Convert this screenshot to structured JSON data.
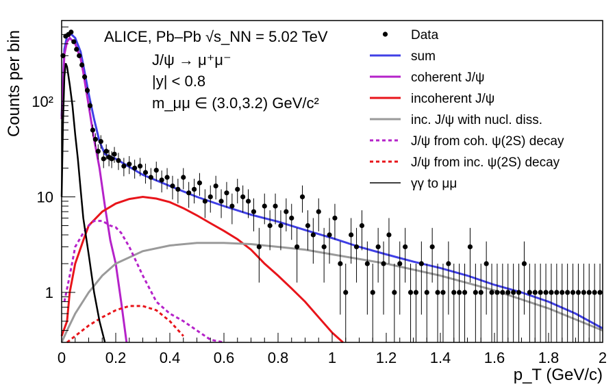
{
  "chart_data": {
    "type": "line",
    "xlabel": "p_T (GeV/c)",
    "ylabel": "Counts per bin",
    "xlim": [
      0,
      2
    ],
    "ylim": [
      0.3,
      700
    ],
    "yscale": "log",
    "grid": false,
    "legend_position": "top-right",
    "x_tick_labels": [
      "0",
      "0.2",
      "0.4",
      "0.6",
      "0.8",
      "1",
      "1.2",
      "1.4",
      "1.6",
      "1.8",
      "2"
    ],
    "y_tick_labels": [
      "1",
      "10",
      "10²"
    ],
    "annotations": [
      "ALICE, Pb–Pb √s_NN = 5.02 TeV",
      "J/ψ → μ⁺μ⁻",
      "|y| < 0.8",
      "m_μμ ∈ (3.0,3.2) GeV/c²"
    ],
    "legend": [
      {
        "label": "Data",
        "kind": "marker",
        "color": "#000000"
      },
      {
        "label": "sum",
        "kind": "line",
        "color": "#3f3fe6"
      },
      {
        "label": "coherent J/ψ",
        "kind": "line",
        "color": "#b522c9"
      },
      {
        "label": "incoherent J/ψ",
        "kind": "line",
        "color": "#e8141a"
      },
      {
        "label": "inc. J/ψ with nucl. diss.",
        "kind": "line",
        "color": "#9a9a9a"
      },
      {
        "label": "J/ψ from coh. ψ(2S) decay",
        "kind": "dashed",
        "color": "#b522c9"
      },
      {
        "label": "J/ψ from inc. ψ(2S) decay",
        "kind": "dashed",
        "color": "#e8141a"
      },
      {
        "label": "γγ to μμ",
        "kind": "thin",
        "color": "#000000"
      }
    ],
    "series": [
      {
        "name": "sum",
        "color": "#3f3fe6",
        "style": "solid",
        "x": [
          0,
          0.01,
          0.02,
          0.03,
          0.05,
          0.07,
          0.08,
          0.1,
          0.12,
          0.14,
          0.16,
          0.2,
          0.3,
          0.4,
          0.5,
          0.6,
          0.7,
          0.8,
          0.9,
          1.0,
          1.1,
          1.2,
          1.3,
          1.4,
          1.5,
          1.6,
          1.7,
          1.8,
          1.9,
          2.0
        ],
        "y": [
          70,
          350,
          480,
          520,
          460,
          330,
          240,
          120,
          65,
          38,
          28,
          25,
          17,
          13,
          10,
          8,
          6.5,
          5.5,
          4.5,
          3.7,
          3.0,
          2.5,
          2.1,
          1.8,
          1.5,
          1.2,
          1.0,
          0.8,
          0.6,
          0.42
        ]
      },
      {
        "name": "coherent J/ψ",
        "color": "#b522c9",
        "style": "solid",
        "x": [
          0,
          0.01,
          0.02,
          0.03,
          0.05,
          0.07,
          0.08,
          0.1,
          0.12,
          0.14,
          0.16,
          0.18,
          0.2,
          0.22,
          0.24
        ],
        "y": [
          65,
          310,
          420,
          460,
          400,
          280,
          200,
          90,
          40,
          20,
          8,
          3.5,
          2,
          0.8,
          0.3
        ]
      },
      {
        "name": "incoherent J/ψ",
        "color": "#e8141a",
        "style": "solid",
        "x": [
          0,
          0.02,
          0.03,
          0.05,
          0.08,
          0.1,
          0.15,
          0.2,
          0.25,
          0.3,
          0.35,
          0.4,
          0.45,
          0.5,
          0.55,
          0.6,
          0.65,
          0.7,
          0.75,
          0.8,
          0.85,
          0.9,
          0.95,
          1.0,
          1.04
        ],
        "y": [
          0.35,
          0.5,
          1.0,
          2.0,
          3.5,
          5.0,
          7.0,
          8.5,
          9.5,
          10,
          9.6,
          8.8,
          7.6,
          6.4,
          5.3,
          4.4,
          3.6,
          2.8,
          2.0,
          1.5,
          1.1,
          0.8,
          0.55,
          0.38,
          0.3
        ]
      },
      {
        "name": "inc. J/ψ with nucl. diss.",
        "color": "#9a9a9a",
        "style": "solid",
        "x": [
          0,
          0.02,
          0.05,
          0.1,
          0.15,
          0.2,
          0.3,
          0.4,
          0.5,
          0.6,
          0.7,
          0.8,
          0.9,
          1.0,
          1.2,
          1.4,
          1.6,
          1.8,
          2.0
        ],
        "y": [
          0.3,
          0.4,
          0.6,
          1.0,
          1.5,
          2.0,
          2.7,
          3.1,
          3.3,
          3.3,
          3.2,
          3.0,
          2.8,
          2.5,
          2.0,
          1.5,
          1.05,
          0.68,
          0.4
        ]
      },
      {
        "name": "J/ψ from coh. ψ(2S) decay",
        "color": "#b522c9",
        "style": "dashed",
        "x": [
          0.01,
          0.03,
          0.05,
          0.08,
          0.1,
          0.12,
          0.15,
          0.18,
          0.2,
          0.22,
          0.25,
          0.3,
          0.35,
          0.4,
          0.45,
          0.5,
          0.55,
          0.6
        ],
        "y": [
          0.8,
          1.5,
          3.0,
          4.2,
          5.0,
          5.6,
          5.6,
          5.0,
          4.8,
          4.2,
          3.0,
          1.5,
          0.8,
          0.6,
          0.5,
          0.4,
          0.32,
          0.3
        ]
      },
      {
        "name": "J/ψ from inc. ψ(2S) decay",
        "color": "#e8141a",
        "style": "dashed",
        "x": [
          0.02,
          0.05,
          0.1,
          0.15,
          0.2,
          0.25,
          0.3,
          0.35,
          0.4,
          0.45
        ],
        "y": [
          0.3,
          0.35,
          0.45,
          0.55,
          0.65,
          0.72,
          0.72,
          0.65,
          0.5,
          0.35
        ]
      },
      {
        "name": "γγ to μμ",
        "color": "#000000",
        "style": "solid",
        "x": [
          0,
          0.005,
          0.01,
          0.015,
          0.02,
          0.03,
          0.04,
          0.05,
          0.06,
          0.07,
          0.08,
          0.1,
          0.12,
          0.14,
          0.16
        ],
        "y": [
          10,
          60,
          180,
          250,
          230,
          150,
          90,
          45,
          25,
          12,
          6,
          2.5,
          1.0,
          0.5,
          0.3
        ]
      }
    ],
    "data_points": {
      "name": "Data",
      "x": [
        0.005,
        0.015,
        0.025,
        0.035,
        0.045,
        0.055,
        0.065,
        0.075,
        0.085,
        0.095,
        0.105,
        0.115,
        0.125,
        0.135,
        0.145,
        0.155,
        0.165,
        0.175,
        0.185,
        0.195,
        0.21,
        0.23,
        0.25,
        0.27,
        0.29,
        0.31,
        0.33,
        0.35,
        0.37,
        0.39,
        0.41,
        0.43,
        0.45,
        0.47,
        0.49,
        0.51,
        0.53,
        0.55,
        0.57,
        0.59,
        0.61,
        0.63,
        0.65,
        0.67,
        0.69,
        0.71,
        0.73,
        0.75,
        0.77,
        0.79,
        0.81,
        0.83,
        0.85,
        0.87,
        0.89,
        0.91,
        0.93,
        0.95,
        0.97,
        0.99,
        1.01,
        1.03,
        1.05,
        1.07,
        1.09,
        1.11,
        1.13,
        1.15,
        1.17,
        1.19,
        1.21,
        1.23,
        1.25,
        1.27,
        1.29,
        1.31,
        1.33,
        1.35,
        1.37,
        1.39,
        1.41,
        1.43,
        1.45,
        1.47,
        1.49,
        1.51,
        1.53,
        1.55,
        1.57,
        1.59,
        1.61,
        1.63,
        1.65,
        1.67,
        1.69,
        1.71,
        1.73,
        1.75,
        1.77,
        1.79,
        1.81,
        1.83,
        1.85,
        1.87,
        1.89,
        1.91,
        1.93,
        1.95,
        1.97,
        1.99
      ],
      "y": [
        300,
        480,
        500,
        530,
        420,
        350,
        300,
        240,
        180,
        130,
        90,
        50,
        40,
        30,
        38,
        25,
        30,
        26,
        25,
        28,
        24,
        21,
        22,
        20,
        21,
        18,
        16,
        19,
        15,
        16,
        13,
        12,
        16,
        11,
        12,
        14,
        9,
        10,
        13,
        9,
        11,
        8,
        12,
        10,
        9,
        7,
        3,
        8,
        5,
        8,
        5,
        7,
        6,
        3,
        10,
        5,
        4,
        7,
        3,
        4,
        6,
        2,
        1,
        4,
        3,
        5,
        2,
        1,
        3,
        2,
        4,
        1,
        2,
        3,
        1,
        1,
        2,
        1,
        3,
        1,
        1,
        2,
        1,
        1,
        1,
        3,
        1,
        1,
        2,
        1,
        1,
        1,
        1,
        1,
        1,
        2,
        1,
        1,
        1,
        1,
        1,
        1,
        1,
        1,
        1,
        1,
        1,
        1,
        1,
        1
      ]
    }
  }
}
